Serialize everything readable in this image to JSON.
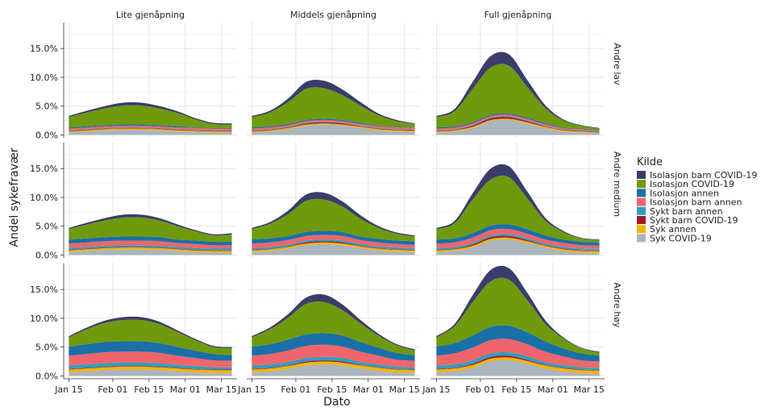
{
  "chart_data": {
    "type": "area",
    "stacked": true,
    "xlabel": "Dato",
    "ylabel": "Andel sykefravær",
    "x": [
      "2022-01-15",
      "2022-01-22",
      "2022-01-29",
      "2022-02-05",
      "2022-02-12",
      "2022-02-19",
      "2022-02-26",
      "2022-03-05",
      "2022-03-12",
      "2022-03-19"
    ],
    "x_ticks": [
      {
        "value": "2022-01-15",
        "label": "Jan 15"
      },
      {
        "value": "2022-02-01",
        "label": "Feb 01"
      },
      {
        "value": "2022-02-15",
        "label": "Feb 15"
      },
      {
        "value": "2022-03-01",
        "label": "Mar 01"
      },
      {
        "value": "2022-03-15",
        "label": "Mar 15"
      }
    ],
    "x_range": [
      "2022-01-13",
      "2022-03-21"
    ],
    "y_ticks": [
      {
        "value": 0,
        "label": "0.0%"
      },
      {
        "value": 5,
        "label": "5.0%"
      },
      {
        "value": 10,
        "label": "10.0%"
      },
      {
        "value": 15,
        "label": "15.0%"
      }
    ],
    "ylim": [
      -0.5,
      19.5
    ],
    "grid": true,
    "legend": {
      "title": "Kilde",
      "position": "right",
      "entries": [
        {
          "name": "Isolasjon barn COVID-19",
          "color": "#3a3d6b"
        },
        {
          "name": "Isolasjon COVID-19",
          "color": "#6e9a0c"
        },
        {
          "name": "Isolasjon annen",
          "color": "#1a6fa8"
        },
        {
          "name": "Isolasjon barn annen",
          "color": "#f0656b"
        },
        {
          "name": "Sykt barn annen",
          "color": "#2e9fbe"
        },
        {
          "name": "Sykt barn COVID-19",
          "color": "#9e1a2a"
        },
        {
          "name": "Syk annen",
          "color": "#f5b400"
        },
        {
          "name": "Syk COVID-19",
          "color": "#aab5bd"
        }
      ]
    },
    "stack_order_bottom_to_top": [
      "Syk COVID-19",
      "Syk annen",
      "Sykt barn COVID-19",
      "Sykt barn annen",
      "Isolasjon barn annen",
      "Isolasjon annen",
      "Isolasjon COVID-19",
      "Isolasjon barn COVID-19"
    ],
    "col_facets": [
      "Lite gjenåpning",
      "Middels gjenåpning",
      "Full gjenåpning"
    ],
    "row_facets": [
      "Andre lav",
      "Andre medium",
      "Andre høy"
    ],
    "panels": [
      {
        "row": "Andre lav",
        "col": "Lite gjenåpning",
        "series": {
          "Syk COVID-19": [
            0.4,
            0.6,
            0.8,
            0.9,
            0.9,
            0.8,
            0.6,
            0.5,
            0.4,
            0.4
          ],
          "Syk annen": [
            0.2,
            0.2,
            0.2,
            0.2,
            0.2,
            0.2,
            0.2,
            0.2,
            0.2,
            0.2
          ],
          "Sykt barn COVID-19": [
            0.1,
            0.1,
            0.1,
            0.1,
            0.1,
            0.1,
            0.1,
            0.1,
            0.1,
            0.1
          ],
          "Sykt barn annen": [
            0.1,
            0.1,
            0.1,
            0.1,
            0.1,
            0.1,
            0.1,
            0.1,
            0.1,
            0.1
          ],
          "Isolasjon barn annen": [
            0.3,
            0.3,
            0.3,
            0.3,
            0.3,
            0.3,
            0.3,
            0.3,
            0.3,
            0.3
          ],
          "Isolasjon annen": [
            0.2,
            0.2,
            0.2,
            0.2,
            0.2,
            0.2,
            0.2,
            0.1,
            0.1,
            0.1
          ],
          "Isolasjon COVID-19": [
            1.8,
            2.4,
            2.9,
            3.3,
            3.3,
            2.9,
            2.3,
            1.4,
            0.7,
            0.6
          ],
          "Isolasjon barn COVID-19": [
            0.2,
            0.3,
            0.4,
            0.5,
            0.5,
            0.4,
            0.3,
            0.2,
            0.2,
            0.2
          ]
        }
      },
      {
        "row": "Andre lav",
        "col": "Middels gjenåpning",
        "series": {
          "Syk COVID-19": [
            0.4,
            0.6,
            1.0,
            1.6,
            1.8,
            1.6,
            1.2,
            0.8,
            0.6,
            0.5
          ],
          "Syk annen": [
            0.2,
            0.2,
            0.2,
            0.2,
            0.2,
            0.2,
            0.2,
            0.2,
            0.2,
            0.2
          ],
          "Sykt barn COVID-19": [
            0.1,
            0.1,
            0.1,
            0.2,
            0.2,
            0.2,
            0.1,
            0.1,
            0.1,
            0.1
          ],
          "Sykt barn annen": [
            0.1,
            0.1,
            0.1,
            0.1,
            0.1,
            0.1,
            0.1,
            0.1,
            0.1,
            0.1
          ],
          "Isolasjon barn annen": [
            0.3,
            0.3,
            0.3,
            0.3,
            0.3,
            0.3,
            0.3,
            0.3,
            0.3,
            0.3
          ],
          "Isolasjon annen": [
            0.2,
            0.2,
            0.2,
            0.2,
            0.2,
            0.2,
            0.2,
            0.1,
            0.1,
            0.1
          ],
          "Isolasjon COVID-19": [
            1.8,
            2.4,
            3.8,
            5.4,
            5.3,
            4.3,
            3.0,
            1.8,
            1.0,
            0.6
          ],
          "Isolasjon barn COVID-19": [
            0.2,
            0.3,
            0.6,
            1.2,
            1.3,
            1.0,
            0.6,
            0.3,
            0.2,
            0.1
          ]
        }
      },
      {
        "row": "Andre lav",
        "col": "Full gjenåpning",
        "series": {
          "Syk COVID-19": [
            0.4,
            0.6,
            1.2,
            2.4,
            2.6,
            2.0,
            1.2,
            0.6,
            0.4,
            0.3
          ],
          "Syk annen": [
            0.2,
            0.2,
            0.2,
            0.2,
            0.2,
            0.2,
            0.2,
            0.2,
            0.2,
            0.1
          ],
          "Sykt barn COVID-19": [
            0.1,
            0.1,
            0.2,
            0.3,
            0.3,
            0.2,
            0.1,
            0.1,
            0.1,
            0.1
          ],
          "Sykt barn annen": [
            0.1,
            0.1,
            0.1,
            0.1,
            0.1,
            0.1,
            0.1,
            0.1,
            0.1,
            0.1
          ],
          "Isolasjon barn annen": [
            0.3,
            0.3,
            0.3,
            0.3,
            0.3,
            0.3,
            0.3,
            0.2,
            0.2,
            0.1
          ],
          "Isolasjon annen": [
            0.2,
            0.2,
            0.2,
            0.2,
            0.2,
            0.2,
            0.2,
            0.1,
            0.1,
            0.1
          ],
          "Isolasjon COVID-19": [
            1.8,
            2.6,
            5.8,
            8.2,
            8.3,
            5.4,
            2.6,
            1.2,
            0.5,
            0.3
          ],
          "Isolasjon barn COVID-19": [
            0.2,
            0.4,
            1.2,
            2.0,
            2.0,
            1.2,
            0.5,
            0.2,
            0.1,
            0.1
          ]
        }
      },
      {
        "row": "Andre medium",
        "col": "Lite gjenåpning",
        "series": {
          "Syk COVID-19": [
            0.5,
            0.7,
            0.9,
            1.0,
            1.0,
            0.9,
            0.7,
            0.5,
            0.4,
            0.4
          ],
          "Syk annen": [
            0.3,
            0.3,
            0.3,
            0.3,
            0.3,
            0.3,
            0.3,
            0.3,
            0.3,
            0.3
          ],
          "Sykt barn COVID-19": [
            0.1,
            0.1,
            0.1,
            0.1,
            0.1,
            0.1,
            0.1,
            0.1,
            0.1,
            0.1
          ],
          "Sykt barn annen": [
            0.3,
            0.3,
            0.3,
            0.3,
            0.3,
            0.3,
            0.3,
            0.3,
            0.3,
            0.3
          ],
          "Isolasjon barn annen": [
            0.8,
            0.8,
            0.8,
            0.8,
            0.8,
            0.8,
            0.7,
            0.7,
            0.6,
            0.6
          ],
          "Isolasjon annen": [
            0.7,
            0.7,
            0.7,
            0.7,
            0.7,
            0.7,
            0.6,
            0.6,
            0.6,
            0.6
          ],
          "Isolasjon COVID-19": [
            1.8,
            2.4,
            2.9,
            3.3,
            3.3,
            2.9,
            2.3,
            1.6,
            1.1,
            1.3
          ],
          "Isolasjon barn COVID-19": [
            0.2,
            0.3,
            0.4,
            0.5,
            0.5,
            0.4,
            0.3,
            0.2,
            0.2,
            0.2
          ]
        }
      },
      {
        "row": "Andre medium",
        "col": "Middels gjenåpning",
        "series": {
          "Syk COVID-19": [
            0.5,
            0.7,
            1.1,
            1.7,
            1.9,
            1.7,
            1.2,
            0.8,
            0.6,
            0.5
          ],
          "Syk annen": [
            0.3,
            0.3,
            0.3,
            0.3,
            0.3,
            0.3,
            0.3,
            0.3,
            0.3,
            0.3
          ],
          "Sykt barn COVID-19": [
            0.1,
            0.1,
            0.1,
            0.2,
            0.2,
            0.2,
            0.1,
            0.1,
            0.1,
            0.1
          ],
          "Sykt barn annen": [
            0.3,
            0.3,
            0.3,
            0.3,
            0.3,
            0.3,
            0.3,
            0.3,
            0.3,
            0.3
          ],
          "Isolasjon barn annen": [
            0.8,
            0.8,
            0.8,
            0.8,
            0.8,
            0.8,
            0.7,
            0.7,
            0.6,
            0.6
          ],
          "Isolasjon annen": [
            0.7,
            0.7,
            0.7,
            0.7,
            0.7,
            0.7,
            0.6,
            0.6,
            0.6,
            0.6
          ],
          "Isolasjon COVID-19": [
            1.8,
            2.5,
            3.8,
            5.4,
            5.4,
            4.4,
            3.1,
            1.9,
            1.2,
            0.8
          ],
          "Isolasjon barn COVID-19": [
            0.2,
            0.3,
            0.6,
            1.1,
            1.2,
            0.9,
            0.6,
            0.3,
            0.2,
            0.2
          ]
        }
      },
      {
        "row": "Andre medium",
        "col": "Full gjenåpning",
        "series": {
          "Syk COVID-19": [
            0.5,
            0.7,
            1.3,
            2.5,
            2.7,
            2.1,
            1.3,
            0.7,
            0.4,
            0.3
          ],
          "Syk annen": [
            0.3,
            0.3,
            0.3,
            0.3,
            0.3,
            0.3,
            0.3,
            0.3,
            0.3,
            0.3
          ],
          "Sykt barn COVID-19": [
            0.1,
            0.1,
            0.2,
            0.3,
            0.3,
            0.2,
            0.1,
            0.1,
            0.1,
            0.1
          ],
          "Sykt barn annen": [
            0.3,
            0.3,
            0.3,
            0.3,
            0.3,
            0.3,
            0.3,
            0.3,
            0.3,
            0.3
          ],
          "Isolasjon barn annen": [
            0.8,
            0.8,
            0.9,
            0.9,
            0.9,
            0.8,
            0.7,
            0.7,
            0.6,
            0.6
          ],
          "Isolasjon annen": [
            0.7,
            0.7,
            0.8,
            0.8,
            0.8,
            0.8,
            0.7,
            0.6,
            0.6,
            0.6
          ],
          "Isolasjon COVID-19": [
            1.8,
            2.6,
            5.8,
            8.0,
            8.2,
            5.4,
            2.6,
            1.3,
            0.6,
            0.4
          ],
          "Isolasjon barn COVID-19": [
            0.2,
            0.4,
            1.1,
            1.9,
            1.9,
            1.2,
            0.5,
            0.2,
            0.1,
            0.1
          ]
        }
      },
      {
        "row": "Andre høy",
        "col": "Lite gjenåpning",
        "series": {
          "Syk COVID-19": [
            0.6,
            0.8,
            1.0,
            1.1,
            1.1,
            1.0,
            0.8,
            0.6,
            0.5,
            0.5
          ],
          "Syk annen": [
            0.5,
            0.5,
            0.5,
            0.5,
            0.5,
            0.5,
            0.5,
            0.5,
            0.5,
            0.5
          ],
          "Sykt barn COVID-19": [
            0.1,
            0.1,
            0.1,
            0.1,
            0.1,
            0.1,
            0.1,
            0.1,
            0.1,
            0.1
          ],
          "Sykt barn annen": [
            0.6,
            0.6,
            0.6,
            0.6,
            0.6,
            0.6,
            0.5,
            0.5,
            0.4,
            0.4
          ],
          "Isolasjon barn annen": [
            1.7,
            1.8,
            1.9,
            1.9,
            1.9,
            1.8,
            1.6,
            1.4,
            1.2,
            1.1
          ],
          "Isolasjon annen": [
            1.6,
            1.7,
            1.8,
            1.8,
            1.8,
            1.7,
            1.5,
            1.3,
            1.1,
            1.0
          ],
          "Isolasjon COVID-19": [
            1.6,
            2.6,
            3.3,
            3.7,
            3.7,
            3.3,
            2.6,
            1.8,
            1.2,
            1.2
          ],
          "Isolasjon barn COVID-19": [
            0.2,
            0.3,
            0.4,
            0.5,
            0.5,
            0.4,
            0.3,
            0.2,
            0.2,
            0.2
          ]
        }
      },
      {
        "row": "Andre høy",
        "col": "Middels gjenåpning",
        "series": {
          "Syk COVID-19": [
            0.6,
            0.8,
            1.2,
            1.8,
            2.0,
            1.8,
            1.3,
            0.9,
            0.6,
            0.5
          ],
          "Syk annen": [
            0.5,
            0.5,
            0.5,
            0.5,
            0.5,
            0.5,
            0.5,
            0.5,
            0.5,
            0.5
          ],
          "Sykt barn COVID-19": [
            0.1,
            0.1,
            0.1,
            0.2,
            0.2,
            0.2,
            0.1,
            0.1,
            0.1,
            0.1
          ],
          "Sykt barn annen": [
            0.6,
            0.6,
            0.6,
            0.6,
            0.6,
            0.6,
            0.5,
            0.5,
            0.4,
            0.4
          ],
          "Isolasjon barn annen": [
            1.7,
            1.8,
            2.0,
            2.1,
            2.1,
            2.0,
            1.8,
            1.5,
            1.2,
            1.1
          ],
          "Isolasjon annen": [
            1.6,
            1.7,
            1.9,
            2.0,
            2.0,
            1.9,
            1.7,
            1.4,
            1.2,
            1.0
          ],
          "Isolasjon COVID-19": [
            1.6,
            2.6,
            3.8,
            5.3,
            5.4,
            4.4,
            3.2,
            2.1,
            1.3,
            0.8
          ],
          "Isolasjon barn COVID-19": [
            0.2,
            0.3,
            0.6,
            1.1,
            1.3,
            1.0,
            0.6,
            0.3,
            0.2,
            0.2
          ]
        }
      },
      {
        "row": "Andre høy",
        "col": "Full gjenåpning",
        "series": {
          "Syk COVID-19": [
            0.6,
            0.8,
            1.4,
            2.5,
            2.7,
            2.1,
            1.3,
            0.8,
            0.5,
            0.4
          ],
          "Syk annen": [
            0.5,
            0.5,
            0.5,
            0.5,
            0.5,
            0.5,
            0.5,
            0.5,
            0.5,
            0.5
          ],
          "Sykt barn COVID-19": [
            0.1,
            0.1,
            0.2,
            0.3,
            0.3,
            0.2,
            0.1,
            0.1,
            0.1,
            0.1
          ],
          "Sykt barn annen": [
            0.6,
            0.6,
            0.6,
            0.6,
            0.6,
            0.6,
            0.5,
            0.5,
            0.4,
            0.4
          ],
          "Isolasjon barn annen": [
            1.7,
            1.9,
            2.2,
            2.3,
            2.3,
            2.1,
            1.8,
            1.5,
            1.2,
            1.1
          ],
          "Isolasjon annen": [
            1.6,
            1.8,
            2.1,
            2.3,
            2.3,
            2.1,
            1.8,
            1.4,
            1.2,
            1.0
          ],
          "Isolasjon COVID-19": [
            1.6,
            2.9,
            5.8,
            7.9,
            8.0,
            5.6,
            3.1,
            1.7,
            0.9,
            0.6
          ],
          "Isolasjon barn COVID-19": [
            0.2,
            0.4,
            1.2,
            2.0,
            2.0,
            1.3,
            0.6,
            0.2,
            0.1,
            0.1
          ]
        }
      }
    ]
  }
}
